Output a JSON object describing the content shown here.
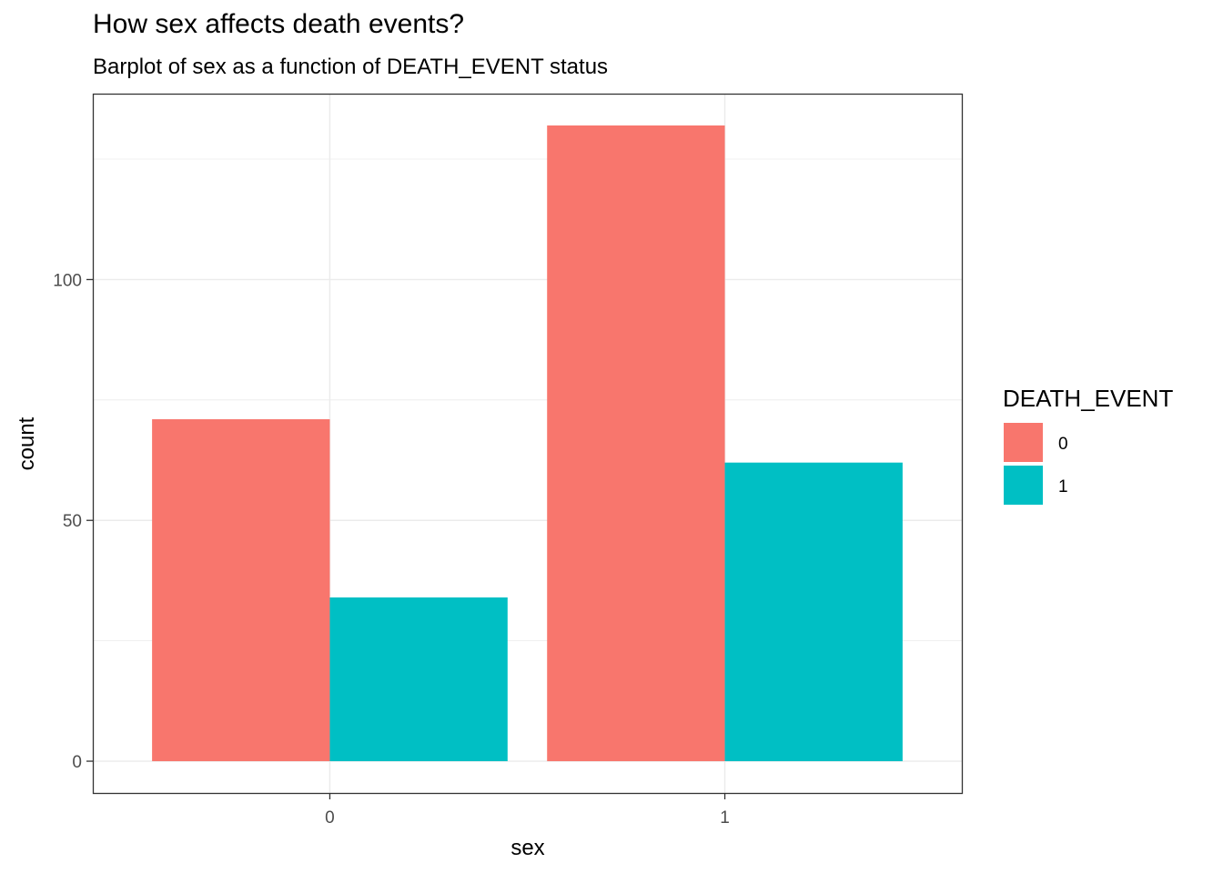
{
  "chart_data": {
    "type": "bar",
    "title": "How sex affects death events?",
    "subtitle": "Barplot of sex as a function of DEATH_EVENT status",
    "xlabel": "sex",
    "ylabel": "count",
    "categories": [
      "0",
      "1"
    ],
    "series": [
      {
        "name": "0",
        "values": [
          71,
          132
        ],
        "color": "#F8766D"
      },
      {
        "name": "1",
        "values": [
          34,
          62
        ],
        "color": "#00BFC4"
      }
    ],
    "yticks": [
      0,
      50,
      100
    ],
    "ylim": [
      -6.6,
      138.6
    ],
    "grid": true,
    "legend": {
      "title": "DEATH_EVENT",
      "position": "right"
    }
  }
}
